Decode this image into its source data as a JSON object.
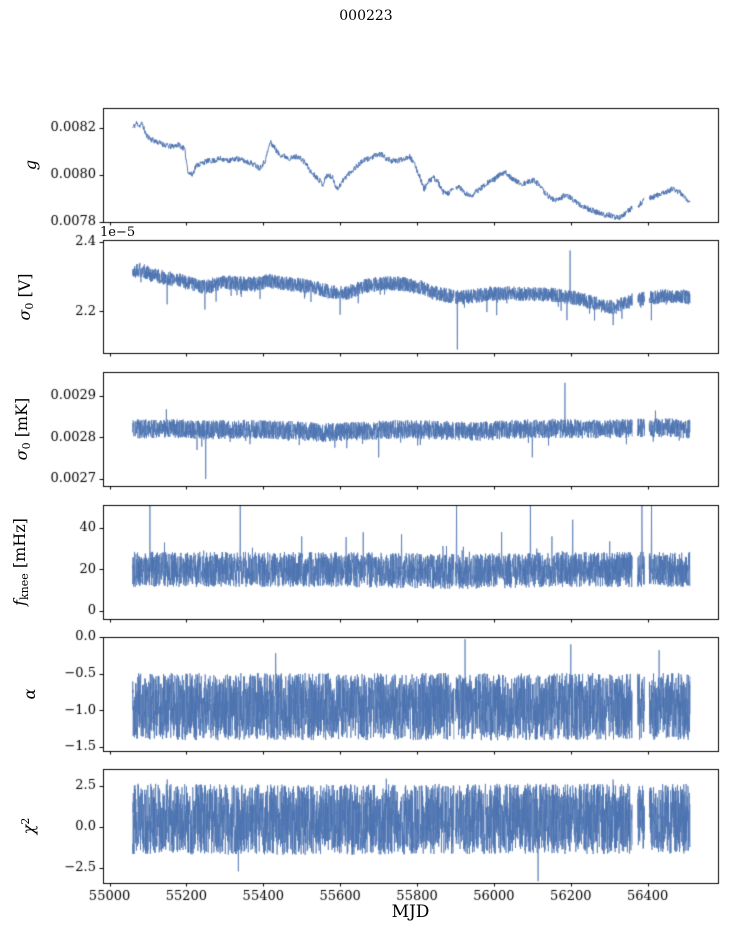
{
  "figure": {
    "title": "000223",
    "xlabel": "MJD"
  },
  "chart_data": {
    "type": "line",
    "title": "000223",
    "xlabel": "MJD",
    "grid": false,
    "legend": "none",
    "line_color": "#4c72b0",
    "axis_color": "#000000",
    "xlim": [
      54983,
      56583
    ],
    "x_data_range": [
      55060,
      56510
    ],
    "xticks": [
      55000,
      55200,
      55400,
      55600,
      55800,
      56000,
      56200,
      56400
    ],
    "xtick_labels": [
      "55000",
      "55200",
      "55400",
      "55600",
      "55800",
      "56000",
      "56200",
      "56400"
    ],
    "gaps": [
      [
        55896,
        55900
      ],
      [
        56360,
        56374
      ],
      [
        56392,
        56404
      ]
    ],
    "panels": [
      {
        "name": "g",
        "ylabel_text": "g",
        "ylabel_parts": [
          {
            "t": "g",
            "s": "i"
          }
        ],
        "ylim": [
          0.0078,
          0.008285
        ],
        "yticks": [
          0.0078,
          0.008,
          0.0082
        ],
        "ytick_labels": [
          "0.0078",
          "0.0080",
          "0.0082"
        ],
        "offset_text": "",
        "noise": 1.2e-05,
        "tail": 0,
        "tail_p": 0,
        "trend": [
          [
            55060,
            0.0082
          ],
          [
            55070,
            0.00822
          ],
          [
            55078,
            0.00821
          ],
          [
            55085,
            0.00822
          ],
          [
            55095,
            0.00817
          ],
          [
            55110,
            0.00815
          ],
          [
            55125,
            0.00814
          ],
          [
            55140,
            0.00813
          ],
          [
            55160,
            0.00812
          ],
          [
            55180,
            0.00813
          ],
          [
            55195,
            0.00811
          ],
          [
            55205,
            0.00801
          ],
          [
            55215,
            0.008
          ],
          [
            55225,
            0.00804
          ],
          [
            55240,
            0.00805
          ],
          [
            55255,
            0.00806
          ],
          [
            55270,
            0.00806
          ],
          [
            55290,
            0.00807
          ],
          [
            55310,
            0.00806
          ],
          [
            55330,
            0.00807
          ],
          [
            55350,
            0.00806
          ],
          [
            55370,
            0.00805
          ],
          [
            55390,
            0.00803
          ],
          [
            55405,
            0.00806
          ],
          [
            55418,
            0.00814
          ],
          [
            55428,
            0.00812
          ],
          [
            55440,
            0.00809
          ],
          [
            55455,
            0.00808
          ],
          [
            55470,
            0.00807
          ],
          [
            55490,
            0.00808
          ],
          [
            55510,
            0.00805
          ],
          [
            55525,
            0.00801
          ],
          [
            55540,
            0.00799
          ],
          [
            55555,
            0.00796
          ],
          [
            55565,
            0.008
          ],
          [
            55580,
            0.00799
          ],
          [
            55592,
            0.00794
          ],
          [
            55605,
            0.00797
          ],
          [
            55618,
            0.008
          ],
          [
            55632,
            0.00802
          ],
          [
            55645,
            0.00804
          ],
          [
            55660,
            0.00806
          ],
          [
            55675,
            0.00807
          ],
          [
            55690,
            0.00808
          ],
          [
            55705,
            0.00809
          ],
          [
            55720,
            0.00807
          ],
          [
            55735,
            0.00806
          ],
          [
            55750,
            0.00806
          ],
          [
            55765,
            0.00807
          ],
          [
            55780,
            0.00808
          ],
          [
            55795,
            0.00804
          ],
          [
            55808,
            0.00799
          ],
          [
            55818,
            0.00794
          ],
          [
            55830,
            0.00797
          ],
          [
            55842,
            0.00799
          ],
          [
            55855,
            0.00797
          ],
          [
            55865,
            0.00793
          ],
          [
            55880,
            0.00792
          ],
          [
            55895,
            0.00794
          ],
          [
            55910,
            0.00795
          ],
          [
            55925,
            0.00792
          ],
          [
            55940,
            0.00791
          ],
          [
            55955,
            0.00793
          ],
          [
            55970,
            0.00795
          ],
          [
            55985,
            0.00797
          ],
          [
            56000,
            0.00798
          ],
          [
            56015,
            0.008
          ],
          [
            56030,
            0.00801
          ],
          [
            56045,
            0.00799
          ],
          [
            56060,
            0.00797
          ],
          [
            56075,
            0.00796
          ],
          [
            56090,
            0.00797
          ],
          [
            56105,
            0.00798
          ],
          [
            56120,
            0.00795
          ],
          [
            56135,
            0.00792
          ],
          [
            56150,
            0.0079
          ],
          [
            56165,
            0.00789
          ],
          [
            56180,
            0.00791
          ],
          [
            56195,
            0.00791
          ],
          [
            56210,
            0.00789
          ],
          [
            56225,
            0.00787
          ],
          [
            56240,
            0.00786
          ],
          [
            56255,
            0.00785
          ],
          [
            56270,
            0.00784
          ],
          [
            56285,
            0.00783
          ],
          [
            56300,
            0.00783
          ],
          [
            56315,
            0.00782
          ],
          [
            56330,
            0.00782
          ],
          [
            56345,
            0.00784
          ],
          [
            56360,
            0.00786
          ],
          [
            56375,
            0.00787
          ],
          [
            56390,
            0.00789
          ],
          [
            56405,
            0.0079
          ],
          [
            56420,
            0.00791
          ],
          [
            56435,
            0.00792
          ],
          [
            56450,
            0.00793
          ],
          [
            56465,
            0.00794
          ],
          [
            56480,
            0.00793
          ],
          [
            56495,
            0.00791
          ],
          [
            56510,
            0.00788
          ]
        ],
        "spikes": []
      },
      {
        "name": "sigma0-V",
        "ylabel_text": "σ0 [V]",
        "ylabel_parts": [
          {
            "t": "σ",
            "s": "i"
          },
          {
            "t": "0",
            "s": "sub"
          },
          {
            "t": " [V]",
            "s": "r"
          }
        ],
        "ylim": [
          2.08,
          2.405
        ],
        "yticks": [
          2.2,
          2.4
        ],
        "ytick_labels": [
          "2.2",
          "2.4"
        ],
        "offset_text": "1e−5",
        "noise": 0.021,
        "tail": -0.05,
        "tail_p": 0.02,
        "trend": [
          [
            55060,
            2.315
          ],
          [
            55075,
            2.32
          ],
          [
            55090,
            2.315
          ],
          [
            55110,
            2.305
          ],
          [
            55130,
            2.3
          ],
          [
            55150,
            2.295
          ],
          [
            55175,
            2.29
          ],
          [
            55200,
            2.285
          ],
          [
            55225,
            2.275
          ],
          [
            55250,
            2.27
          ],
          [
            55275,
            2.278
          ],
          [
            55300,
            2.283
          ],
          [
            55330,
            2.28
          ],
          [
            55360,
            2.278
          ],
          [
            55390,
            2.28
          ],
          [
            55415,
            2.288
          ],
          [
            55440,
            2.282
          ],
          [
            55465,
            2.278
          ],
          [
            55490,
            2.276
          ],
          [
            55515,
            2.272
          ],
          [
            55540,
            2.266
          ],
          [
            55565,
            2.258
          ],
          [
            55590,
            2.252
          ],
          [
            55615,
            2.252
          ],
          [
            55640,
            2.262
          ],
          [
            55665,
            2.272
          ],
          [
            55690,
            2.278
          ],
          [
            55715,
            2.28
          ],
          [
            55740,
            2.28
          ],
          [
            55765,
            2.278
          ],
          [
            55790,
            2.272
          ],
          [
            55815,
            2.268
          ],
          [
            55840,
            2.255
          ],
          [
            55865,
            2.248
          ],
          [
            55890,
            2.244
          ],
          [
            55915,
            2.24
          ],
          [
            55940,
            2.243
          ],
          [
            55965,
            2.246
          ],
          [
            55990,
            2.25
          ],
          [
            56015,
            2.252
          ],
          [
            56040,
            2.252
          ],
          [
            56065,
            2.25
          ],
          [
            56090,
            2.25
          ],
          [
            56115,
            2.25
          ],
          [
            56140,
            2.248
          ],
          [
            56165,
            2.246
          ],
          [
            56190,
            2.242
          ],
          [
            56215,
            2.238
          ],
          [
            56240,
            2.23
          ],
          [
            56265,
            2.222
          ],
          [
            56290,
            2.215
          ],
          [
            56315,
            2.212
          ],
          [
            56340,
            2.225
          ],
          [
            56365,
            2.232
          ],
          [
            56390,
            2.236
          ],
          [
            56415,
            2.24
          ],
          [
            56440,
            2.243
          ],
          [
            56465,
            2.245
          ],
          [
            56490,
            2.243
          ],
          [
            56510,
            2.24
          ]
        ],
        "spikes": [
          [
            55905,
            2.09
          ],
          [
            56198,
            2.375
          ],
          [
            55248,
            2.205
          ],
          [
            55150,
            2.22
          ],
          [
            56310,
            2.16
          ],
          [
            55600,
            2.19
          ]
        ]
      },
      {
        "name": "sigma0-mK",
        "ylabel_text": "σ0 [mK]",
        "ylabel_parts": [
          {
            "t": "σ",
            "s": "i"
          },
          {
            "t": "0",
            "s": "sub"
          },
          {
            "t": " [mK]",
            "s": "r"
          }
        ],
        "ylim": [
          0.002683,
          0.002958
        ],
        "yticks": [
          0.0027,
          0.0028,
          0.0029
        ],
        "ytick_labels": [
          "0.0027",
          "0.0028",
          "0.0029"
        ],
        "offset_text": "",
        "noise": 2.3e-05,
        "tail": -3e-05,
        "tail_p": 0.02,
        "trend": [
          [
            55060,
            0.00282
          ],
          [
            55150,
            0.002822
          ],
          [
            55250,
            0.002818
          ],
          [
            55350,
            0.00282
          ],
          [
            55450,
            0.002818
          ],
          [
            55550,
            0.002812
          ],
          [
            55650,
            0.002815
          ],
          [
            55750,
            0.00282
          ],
          [
            55850,
            0.002818
          ],
          [
            55950,
            0.002815
          ],
          [
            56050,
            0.00282
          ],
          [
            56150,
            0.002822
          ],
          [
            56250,
            0.00282
          ],
          [
            56350,
            0.002822
          ],
          [
            56450,
            0.002824
          ],
          [
            56510,
            0.00282
          ]
        ],
        "spikes": [
          [
            55250,
            0.0027
          ],
          [
            56185,
            0.002932
          ],
          [
            55148,
            0.002868
          ],
          [
            56100,
            0.002752
          ],
          [
            55700,
            0.002752
          ],
          [
            56420,
            0.002865
          ]
        ]
      },
      {
        "name": "fknee",
        "ylabel_text": "fknee [mHz]",
        "ylabel_parts": [
          {
            "t": "f",
            "s": "i"
          },
          {
            "t": "knee",
            "s": "sub"
          },
          {
            "t": " [mHz]",
            "s": "r"
          }
        ],
        "ylim": [
          -3.9,
          51.1
        ],
        "yticks": [
          0,
          20,
          40
        ],
        "ytick_labels": [
          "0",
          "20",
          "40"
        ],
        "offset_text": "",
        "noise": 8.5,
        "tail": 10,
        "tail_p": 0.015,
        "trend": [
          [
            55060,
            20
          ],
          [
            55300,
            20
          ],
          [
            55600,
            20
          ],
          [
            55900,
            19
          ],
          [
            56200,
            20
          ],
          [
            56510,
            20
          ]
        ],
        "spikes": [
          [
            55105,
            52
          ],
          [
            55340,
            52
          ],
          [
            55660,
            38
          ],
          [
            55903,
            52
          ],
          [
            56095,
            52
          ],
          [
            56205,
            44
          ],
          [
            56385,
            52
          ],
          [
            56410,
            52
          ],
          [
            55500,
            36
          ],
          [
            55760,
            37
          ],
          [
            56020,
            38
          ]
        ]
      },
      {
        "name": "alpha",
        "ylabel_text": "α",
        "ylabel_parts": [
          {
            "t": "α",
            "s": "i"
          }
        ],
        "ylim": [
          -1.555,
          0.0
        ],
        "yticks": [
          0.0,
          -0.5,
          -1.0,
          -1.5
        ],
        "ytick_labels": [
          "0.0",
          "−0.5",
          "−1.0",
          "−1.5"
        ],
        "offset_text": "",
        "noise": 0.46,
        "tail": 0,
        "tail_p": 0,
        "trend": [
          [
            55060,
            -0.95
          ],
          [
            56510,
            -0.95
          ]
        ],
        "spikes": [
          [
            55925,
            -0.03
          ],
          [
            55432,
            -0.22
          ],
          [
            56200,
            -0.1
          ],
          [
            56430,
            -0.18
          ]
        ]
      },
      {
        "name": "chi2",
        "ylabel_text": "χ2",
        "ylabel_parts": [
          {
            "t": "χ",
            "s": "i"
          },
          {
            "t": "2",
            "s": "sup"
          }
        ],
        "ylim": [
          -3.41,
          3.54
        ],
        "yticks": [
          -2.5,
          0.0,
          2.5
        ],
        "ytick_labels": [
          "−2.5",
          "0.0",
          "2.5"
        ],
        "offset_text": "",
        "noise": 2.15,
        "tail": 0,
        "tail_p": 0,
        "trend": [
          [
            55060,
            0.5
          ],
          [
            55500,
            0.45
          ],
          [
            56000,
            0.5
          ],
          [
            56510,
            0.5
          ]
        ],
        "spikes": [
          [
            56115,
            -3.3
          ],
          [
            55335,
            -2.7
          ],
          [
            55720,
            2.95
          ],
          [
            56310,
            2.9
          ],
          [
            55150,
            2.9
          ]
        ]
      }
    ]
  }
}
